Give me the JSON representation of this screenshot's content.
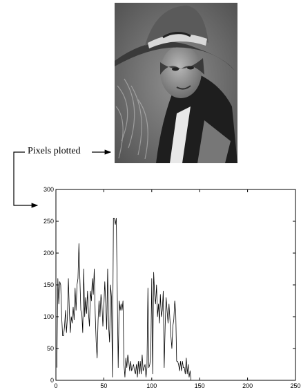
{
  "callout": {
    "label": "Pixels plotted"
  },
  "chart_data": {
    "type": "line",
    "title": "",
    "xlabel": "",
    "ylabel": "",
    "xlim": [
      0,
      250
    ],
    "ylim": [
      0,
      300
    ],
    "x_ticks": [
      "0",
      "50",
      "100",
      "150",
      "200",
      "250"
    ],
    "y_ticks": [
      "0",
      "50",
      "100",
      "150",
      "200",
      "250",
      "300"
    ],
    "grid": false,
    "series": [
      {
        "name": "",
        "x_start": 1,
        "values": [
          20,
          160,
          120,
          155,
          150,
          100,
          70,
          70,
          85,
          110,
          75,
          100,
          160,
          110,
          75,
          100,
          90,
          115,
          95,
          145,
          110,
          150,
          160,
          215,
          160,
          110,
          105,
          75,
          175,
          100,
          130,
          105,
          140,
          105,
          85,
          140,
          125,
          160,
          135,
          175,
          105,
          60,
          35,
          95,
          125,
          100,
          135,
          120,
          85,
          115,
          155,
          120,
          80,
          175,
          85,
          60,
          150,
          130,
          5,
          255,
          255,
          245,
          255,
          140,
          20,
          125,
          110,
          120,
          110,
          125,
          25,
          5,
          35,
          20,
          40,
          30,
          15,
          30,
          15,
          20,
          25,
          15,
          10,
          25,
          5,
          30,
          10,
          30,
          10,
          40,
          15,
          20,
          25,
          5,
          20,
          145,
          20,
          25,
          40,
          160,
          10,
          170,
          135,
          120,
          150,
          100,
          120,
          90,
          135,
          100,
          110,
          140,
          20,
          85,
          130,
          110,
          90,
          120,
          95,
          70,
          50,
          85,
          95,
          125,
          110,
          30,
          30,
          25,
          15,
          30,
          15,
          30,
          20,
          20,
          10,
          35,
          10,
          25,
          5,
          15,
          0
        ]
      }
    ]
  }
}
